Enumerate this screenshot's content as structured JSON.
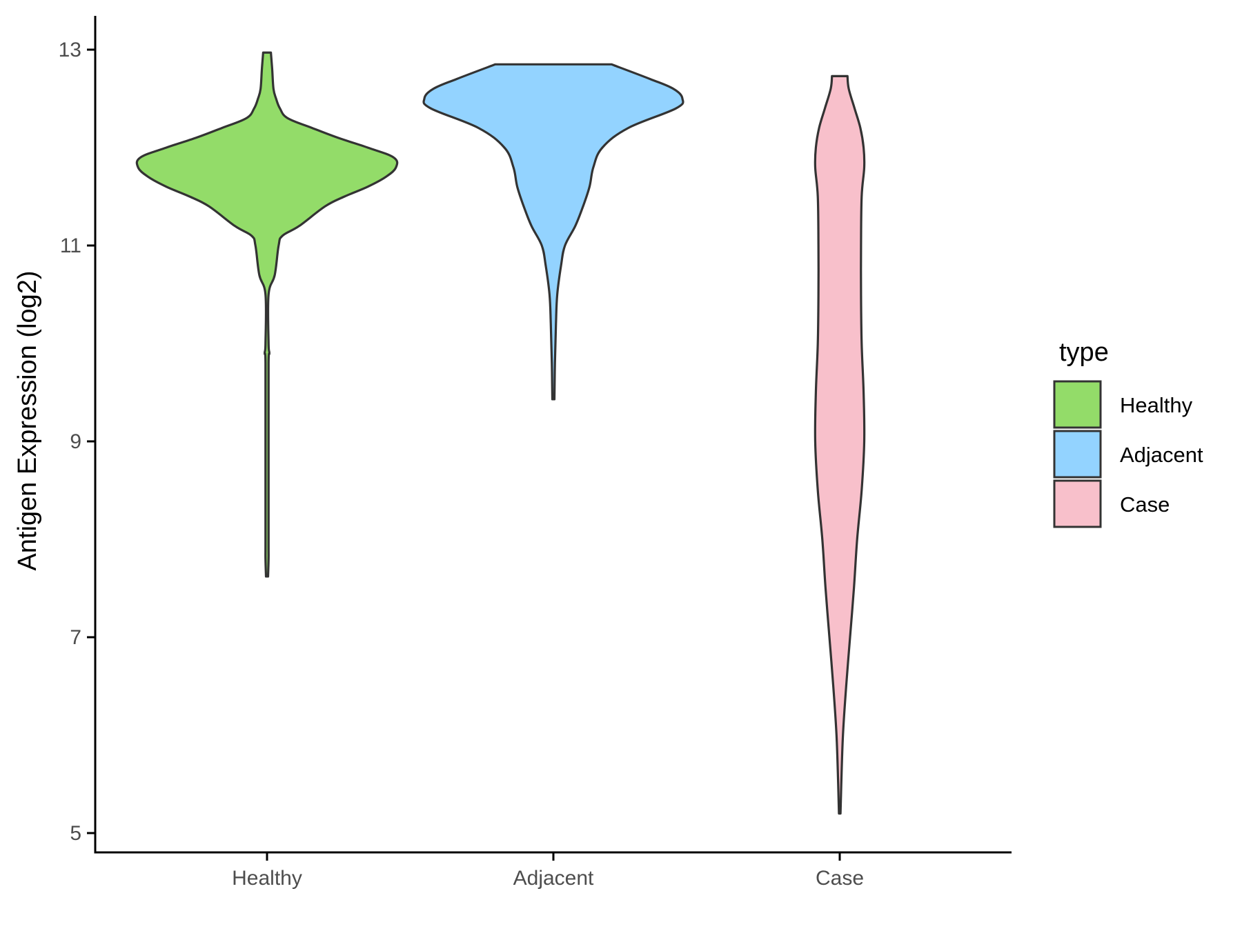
{
  "chart_data": {
    "type": "violin",
    "title": "",
    "xlabel": "",
    "ylabel": "Antigen Expression (log2)",
    "ylim": [
      4.8,
      13.35
    ],
    "yticks": [
      5,
      7,
      9,
      11,
      13
    ],
    "categories": [
      "Healthy",
      "Adjacent",
      "Case"
    ],
    "grid": false,
    "legend": {
      "title": "type",
      "position": "right",
      "entries": [
        "Healthy",
        "Adjacent",
        "Case"
      ]
    },
    "series": [
      {
        "name": "Healthy",
        "color": "#93dc69",
        "min": 7.62,
        "max": 12.97,
        "profile": [
          [
            7.62,
            0.008
          ],
          [
            7.8,
            0.012
          ],
          [
            8.0,
            0.012
          ],
          [
            9.0,
            0.012
          ],
          [
            9.8,
            0.012
          ],
          [
            9.9,
            0.018
          ],
          [
            10.0,
            0.012
          ],
          [
            10.5,
            0.012
          ],
          [
            10.7,
            0.06
          ],
          [
            11.0,
            0.09
          ],
          [
            11.1,
            0.12
          ],
          [
            11.2,
            0.25
          ],
          [
            11.4,
            0.45
          ],
          [
            11.5,
            0.6
          ],
          [
            11.6,
            0.78
          ],
          [
            11.7,
            0.92
          ],
          [
            11.8,
            1.0
          ],
          [
            11.9,
            0.98
          ],
          [
            12.0,
            0.78
          ],
          [
            12.1,
            0.55
          ],
          [
            12.2,
            0.35
          ],
          [
            12.3,
            0.16
          ],
          [
            12.4,
            0.1
          ],
          [
            12.5,
            0.07
          ],
          [
            12.6,
            0.05
          ],
          [
            12.8,
            0.04
          ],
          [
            12.97,
            0.03
          ]
        ]
      },
      {
        "name": "Adjacent",
        "color": "#93d3ff",
        "min": 9.43,
        "max": 12.85,
        "profile": [
          [
            9.43,
            0.008
          ],
          [
            9.8,
            0.012
          ],
          [
            10.2,
            0.02
          ],
          [
            10.5,
            0.03
          ],
          [
            10.8,
            0.06
          ],
          [
            11.0,
            0.09
          ],
          [
            11.2,
            0.17
          ],
          [
            11.4,
            0.23
          ],
          [
            11.6,
            0.28
          ],
          [
            11.8,
            0.31
          ],
          [
            12.0,
            0.38
          ],
          [
            12.2,
            0.58
          ],
          [
            12.4,
            0.95
          ],
          [
            12.5,
            1.0
          ],
          [
            12.6,
            0.93
          ],
          [
            12.7,
            0.75
          ],
          [
            12.85,
            0.45
          ]
        ]
      },
      {
        "name": "Case",
        "color": "#f8c0cb",
        "min": 5.2,
        "max": 12.73,
        "profile": [
          [
            5.2,
            0.006
          ],
          [
            5.5,
            0.012
          ],
          [
            6.0,
            0.025
          ],
          [
            6.5,
            0.05
          ],
          [
            7.0,
            0.08
          ],
          [
            7.5,
            0.11
          ],
          [
            8.0,
            0.135
          ],
          [
            8.5,
            0.17
          ],
          [
            9.0,
            0.19
          ],
          [
            9.5,
            0.185
          ],
          [
            10.0,
            0.17
          ],
          [
            10.5,
            0.165
          ],
          [
            11.0,
            0.165
          ],
          [
            11.5,
            0.17
          ],
          [
            11.8,
            0.19
          ],
          [
            12.0,
            0.185
          ],
          [
            12.2,
            0.16
          ],
          [
            12.4,
            0.115
          ],
          [
            12.6,
            0.07
          ],
          [
            12.73,
            0.06
          ]
        ]
      }
    ]
  }
}
